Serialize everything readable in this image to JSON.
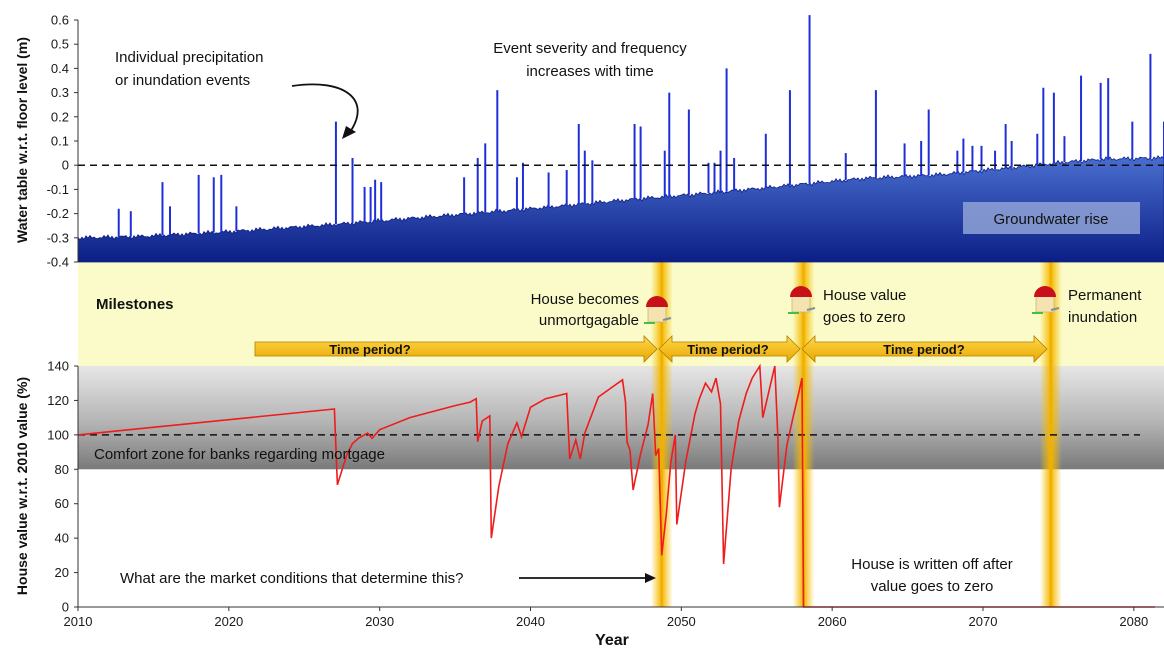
{
  "chart_data": [
    {
      "type": "bar",
      "ylabel": "Water table w.r.t. floor level (m)",
      "ylim": [
        -0.4,
        0.6
      ],
      "yticks": [
        "0.6",
        "0.5",
        "0.4",
        "0.3",
        "0.2",
        "0.1",
        "0",
        "-0.1",
        "-0.2",
        "-0.3",
        "-0.4"
      ],
      "xlim": [
        2010,
        2082
      ],
      "groundwater": [
        [
          2010,
          -0.3
        ],
        [
          2014,
          -0.295
        ],
        [
          2020,
          -0.275
        ],
        [
          2027,
          -0.245
        ],
        [
          2033,
          -0.215
        ],
        [
          2040,
          -0.18
        ],
        [
          2047,
          -0.14
        ],
        [
          2052,
          -0.115
        ],
        [
          2057,
          -0.085
        ],
        [
          2062,
          -0.055
        ],
        [
          2067,
          -0.04
        ],
        [
          2072,
          -0.01
        ],
        [
          2075,
          0.01
        ],
        [
          2078,
          0.025
        ],
        [
          2082,
          0.03
        ]
      ],
      "events": [
        [
          2012.7,
          -0.18
        ],
        [
          2013.5,
          -0.19
        ],
        [
          2015.6,
          -0.07
        ],
        [
          2016.1,
          -0.17
        ],
        [
          2018.0,
          -0.04
        ],
        [
          2019.0,
          -0.05
        ],
        [
          2019.5,
          -0.04
        ],
        [
          2020.5,
          -0.17
        ],
        [
          2027.1,
          0.18
        ],
        [
          2028.2,
          0.03
        ],
        [
          2029.0,
          -0.09
        ],
        [
          2029.4,
          -0.09
        ],
        [
          2029.7,
          -0.06
        ],
        [
          2030.1,
          -0.07
        ],
        [
          2035.6,
          -0.05
        ],
        [
          2036.5,
          0.03
        ],
        [
          2037.0,
          0.09
        ],
        [
          2037.8,
          0.31
        ],
        [
          2039.1,
          -0.05
        ],
        [
          2039.5,
          0.01
        ],
        [
          2041.2,
          -0.03
        ],
        [
          2042.4,
          -0.02
        ],
        [
          2043.2,
          0.17
        ],
        [
          2043.6,
          0.06
        ],
        [
          2044.1,
          0.02
        ],
        [
          2046.9,
          0.17
        ],
        [
          2047.3,
          0.16
        ],
        [
          2048.9,
          0.06
        ],
        [
          2049.2,
          0.3
        ],
        [
          2050.5,
          0.23
        ],
        [
          2051.8,
          0.01
        ],
        [
          2052.2,
          0.01
        ],
        [
          2052.6,
          0.06
        ],
        [
          2053.0,
          0.4
        ],
        [
          2053.5,
          0.03
        ],
        [
          2055.6,
          0.13
        ],
        [
          2057.2,
          0.31
        ],
        [
          2058.5,
          0.62
        ],
        [
          2060.9,
          0.05
        ],
        [
          2062.9,
          0.31
        ],
        [
          2064.8,
          0.09
        ],
        [
          2065.9,
          0.1
        ],
        [
          2066.4,
          0.23
        ],
        [
          2068.3,
          0.06
        ],
        [
          2068.7,
          0.11
        ],
        [
          2069.3,
          0.08
        ],
        [
          2069.9,
          0.08
        ],
        [
          2070.8,
          0.06
        ],
        [
          2071.5,
          0.17
        ],
        [
          2071.9,
          0.1
        ],
        [
          2073.6,
          0.13
        ],
        [
          2074.0,
          0.32
        ],
        [
          2074.7,
          0.3
        ],
        [
          2075.4,
          0.12
        ],
        [
          2076.5,
          0.37
        ],
        [
          2077.8,
          0.34
        ],
        [
          2078.3,
          0.36
        ],
        [
          2079.9,
          0.18
        ],
        [
          2081.1,
          0.46
        ],
        [
          2082.0,
          0.18
        ]
      ]
    },
    {
      "type": "line",
      "xlabel": "Year",
      "ylabel": "House value w.r.t. 2010 value (%)",
      "xlim": [
        2010,
        2082
      ],
      "ylim": [
        0,
        140
      ],
      "xticks": [
        "2010",
        "2020",
        "2030",
        "2040",
        "2050",
        "2060",
        "2070",
        "2080"
      ],
      "yticks": [
        "140",
        "120",
        "100",
        "80",
        "60",
        "40",
        "20",
        "0"
      ],
      "comfort_zone": [
        80,
        140
      ],
      "reference_line": 100,
      "points": [
        [
          2010,
          100
        ],
        [
          2027.0,
          115
        ],
        [
          2027.2,
          71
        ],
        [
          2027.8,
          88
        ],
        [
          2028.2,
          95
        ],
        [
          2028.6,
          98
        ],
        [
          2029.2,
          101
        ],
        [
          2029.5,
          98
        ],
        [
          2030.0,
          103
        ],
        [
          2032,
          110
        ],
        [
          2035,
          117
        ],
        [
          2036,
          119
        ],
        [
          2036.4,
          121
        ],
        [
          2036.5,
          96
        ],
        [
          2036.8,
          108
        ],
        [
          2037.3,
          111
        ],
        [
          2037.4,
          40
        ],
        [
          2037.9,
          70
        ],
        [
          2038.5,
          95
        ],
        [
          2039.1,
          107
        ],
        [
          2039.4,
          99
        ],
        [
          2040,
          116
        ],
        [
          2041,
          121
        ],
        [
          2042.4,
          124
        ],
        [
          2042.6,
          86
        ],
        [
          2043.0,
          97
        ],
        [
          2043.3,
          86
        ],
        [
          2043.6,
          101
        ],
        [
          2044.5,
          122
        ],
        [
          2046.1,
          132
        ],
        [
          2046.3,
          119
        ],
        [
          2046.4,
          96
        ],
        [
          2046.6,
          91
        ],
        [
          2046.8,
          68
        ],
        [
          2047.3,
          89
        ],
        [
          2047.8,
          106
        ],
        [
          2048.1,
          124
        ],
        [
          2048.3,
          88
        ],
        [
          2048.5,
          92
        ],
        [
          2048.7,
          30
        ],
        [
          2049.0,
          54
        ],
        [
          2049.3,
          84
        ],
        [
          2049.6,
          100
        ],
        [
          2049.7,
          48
        ],
        [
          2050.3,
          85
        ],
        [
          2050.9,
          112
        ],
        [
          2051.2,
          121
        ],
        [
          2051.6,
          130
        ],
        [
          2052.0,
          125
        ],
        [
          2052.3,
          133
        ],
        [
          2052.6,
          118
        ],
        [
          2052.8,
          25
        ],
        [
          2053.3,
          80
        ],
        [
          2053.8,
          108
        ],
        [
          2054.3,
          124
        ],
        [
          2054.7,
          133
        ],
        [
          2055.2,
          140
        ],
        [
          2055.4,
          110
        ],
        [
          2055.8,
          125
        ],
        [
          2056.2,
          140
        ],
        [
          2056.4,
          98
        ],
        [
          2056.5,
          58
        ],
        [
          2057.0,
          94
        ],
        [
          2057.4,
          110
        ],
        [
          2057.8,
          125
        ],
        [
          2058.0,
          133
        ],
        [
          2058.1,
          0
        ],
        [
          2081.4,
          0
        ]
      ]
    }
  ],
  "annotations": {
    "events": [
      "Individual precipitation",
      "or inundation events"
    ],
    "severity": [
      "Event severity and frequency",
      "increases with time"
    ],
    "groundwater": "Groundwater rise",
    "milestones": "Milestones",
    "unmortgagable": [
      "House becomes",
      "unmortgagable"
    ],
    "zero": [
      "House value",
      "goes to zero"
    ],
    "permanent": [
      "Permanent",
      "inundation"
    ],
    "period1": "Time period?",
    "period2": "Time period?",
    "period3": "Time period?",
    "comfort": "Comfort zone for banks regarding mortgage",
    "market": "What are the market conditions that determine this?",
    "writtenoff": [
      "House is written off after",
      "value goes to zero"
    ]
  },
  "colors": {
    "events": "#1f2fd8",
    "groundwater_top": "#3b5fc4",
    "groundwater_bottom": "#0b1e86",
    "milestone_band": "#fafbc8",
    "comfort_band": "#b0b0b0",
    "house_value": "#ee1c1c",
    "arrows": "#f5b800",
    "milestone_lines": "#f0b000"
  }
}
